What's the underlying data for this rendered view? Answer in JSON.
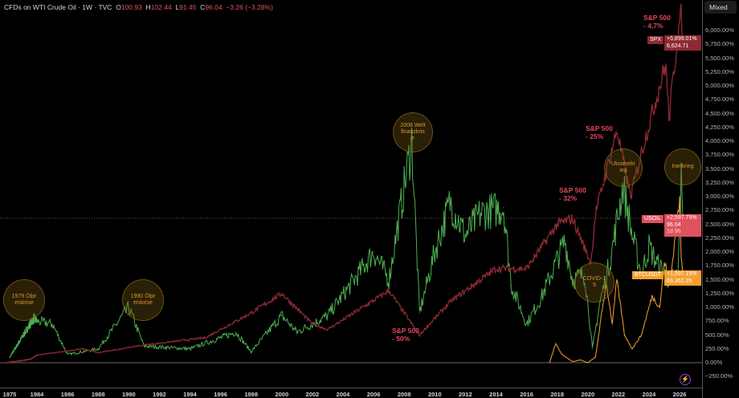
{
  "legend": {
    "symbol": "CFDs on WTI Crude Oil · 1W · TVC",
    "open_label": "O",
    "open": "100.93",
    "high_label": "H",
    "high": "102.44",
    "low_label": "L",
    "low": "91.45",
    "close_label": "C",
    "close": "96.04",
    "change": "−3.26 (−3.28%)"
  },
  "scale_mode": "Mixed",
  "price_tags": {
    "spx": {
      "symbol": "SPX",
      "pct": "+5,899.01%",
      "price": "6,624.71",
      "color": "#8e2a33"
    },
    "usoil": {
      "symbol": "USOIL",
      "pct": "+2,597.75%",
      "price": "96.04",
      "countdown": "1d 9h",
      "color": "#e0525f"
    },
    "btc": {
      "symbol": "BTCUSDT",
      "pct": "+1,597.19%",
      "price": "69,352.29",
      "color": "#f7a030"
    }
  },
  "annotations": [
    {
      "text": "1979 Ölpreiskrise"
    },
    {
      "text": "1990 Ölpreiskrise"
    },
    {
      "text": "2008 Weltfinanzkrise"
    },
    {
      "text": "COVID-19"
    },
    {
      "text": "Ukrainekrieg"
    },
    {
      "text": "Irankrieg"
    }
  ],
  "notes": [
    {
      "text": "S&P 500\n- 4,7%"
    },
    {
      "text": "S&P 500\n- 25%"
    },
    {
      "text": "S&P 500\n- 32%"
    },
    {
      "text": "S&P 500\n- 50%"
    }
  ],
  "chart_data": {
    "type": "line",
    "title": "CFDs on WTI Crude Oil · 1W · TVC",
    "y_unit": "%",
    "ylim": [
      -250,
      6250
    ],
    "y_ticks": [
      "6,250.00%",
      "6,000.00%",
      "5,750.00%",
      "5,500.00%",
      "5,250.00%",
      "5,000.00%",
      "4,750.00%",
      "4,500.00%",
      "4,250.00%",
      "4,000.00%",
      "3,750.00%",
      "3,500.00%",
      "3,250.00%",
      "3,000.00%",
      "2,750.00%",
      "2,500.00%",
      "2,250.00%",
      "2,000.00%",
      "1,750.00%",
      "1,500.00%",
      "1,250.00%",
      "1,000.00%",
      "750.00%",
      "500.00%",
      "250.00%",
      "0.00%",
      "−250.00%"
    ],
    "x_ticks": [
      "1975",
      "1984",
      "1986",
      "1988",
      "1990",
      "1992",
      "1994",
      "1996",
      "1998",
      "2000",
      "2002",
      "2004",
      "2006",
      "2008",
      "2010",
      "2012",
      "2014",
      "2016",
      "2018",
      "2020",
      "2022",
      "2024",
      "2026"
    ],
    "grid": false,
    "series": [
      {
        "name": "USOIL",
        "color": "#4caf50",
        "points": [
          [
            1976,
            100
          ],
          [
            1980,
            500
          ],
          [
            1983,
            800
          ],
          [
            1985,
            700
          ],
          [
            1986,
            150
          ],
          [
            1988,
            250
          ],
          [
            1990,
            1000
          ],
          [
            1991,
            300
          ],
          [
            1994,
            250
          ],
          [
            1997,
            550
          ],
          [
            1998,
            200
          ],
          [
            2000,
            850
          ],
          [
            2001,
            550
          ],
          [
            2003,
            850
          ],
          [
            2005,
            1600
          ],
          [
            2006,
            2000
          ],
          [
            2007,
            1500
          ],
          [
            2008.5,
            4000
          ],
          [
            2009,
            900
          ],
          [
            2010,
            2000
          ],
          [
            2011,
            2900
          ],
          [
            2012,
            2300
          ],
          [
            2013,
            2700
          ],
          [
            2014.5,
            2800
          ],
          [
            2015,
            1400
          ],
          [
            2016,
            700
          ],
          [
            2017,
            1200
          ],
          [
            2018.5,
            2200
          ],
          [
            2019,
            1500
          ],
          [
            2019.8,
            1600
          ],
          [
            2020.3,
            250
          ],
          [
            2020.8,
            1100
          ],
          [
            2021.5,
            1900
          ],
          [
            2022.3,
            3200
          ],
          [
            2022.9,
            2300
          ],
          [
            2023.5,
            1600
          ],
          [
            2024,
            2100
          ],
          [
            2024.5,
            1800
          ],
          [
            2025.3,
            1500
          ],
          [
            2025.9,
            1600
          ],
          [
            2026.1,
            3300
          ],
          [
            2026.2,
            2598
          ]
        ]
      },
      {
        "name": "SPX",
        "color": "#8e2a33",
        "points": [
          [
            1975,
            0
          ],
          [
            1982,
            60
          ],
          [
            1987,
            250
          ],
          [
            1988,
            180
          ],
          [
            1991,
            320
          ],
          [
            1995,
            450
          ],
          [
            1998,
            900
          ],
          [
            2000,
            1250
          ],
          [
            2002,
            700
          ],
          [
            2003,
            600
          ],
          [
            2007,
            1300
          ],
          [
            2009,
            500
          ],
          [
            2011,
            1100
          ],
          [
            2014,
            1700
          ],
          [
            2016,
            1700
          ],
          [
            2018,
            2500
          ],
          [
            2019,
            2600
          ],
          [
            2020.2,
            1800
          ],
          [
            2020.5,
            2700
          ],
          [
            2021.9,
            4200
          ],
          [
            2022.8,
            3000
          ],
          [
            2023.5,
            3800
          ],
          [
            2024.5,
            4800
          ],
          [
            2025.1,
            5400
          ],
          [
            2025.3,
            4400
          ],
          [
            2025.9,
            6000
          ],
          [
            2026.1,
            6250
          ],
          [
            2026.2,
            5899
          ]
        ]
      },
      {
        "name": "BTCUSDT",
        "color": "#f7a030",
        "points": [
          [
            2017.5,
            0
          ],
          [
            2017.9,
            350
          ],
          [
            2018.3,
            150
          ],
          [
            2019,
            20
          ],
          [
            2019.5,
            50
          ],
          [
            2020,
            0
          ],
          [
            2020.5,
            100
          ],
          [
            2021.2,
            1450
          ],
          [
            2021.6,
            700
          ],
          [
            2021.9,
            1500
          ],
          [
            2022.4,
            500
          ],
          [
            2022.9,
            250
          ],
          [
            2023.5,
            500
          ],
          [
            2024.2,
            1200
          ],
          [
            2024.7,
            1000
          ],
          [
            2025,
            1800
          ],
          [
            2025.4,
            1500
          ],
          [
            2025.8,
            2500
          ],
          [
            2026,
            2900
          ],
          [
            2026.1,
            1900
          ],
          [
            2026.2,
            1597
          ]
        ]
      }
    ]
  }
}
